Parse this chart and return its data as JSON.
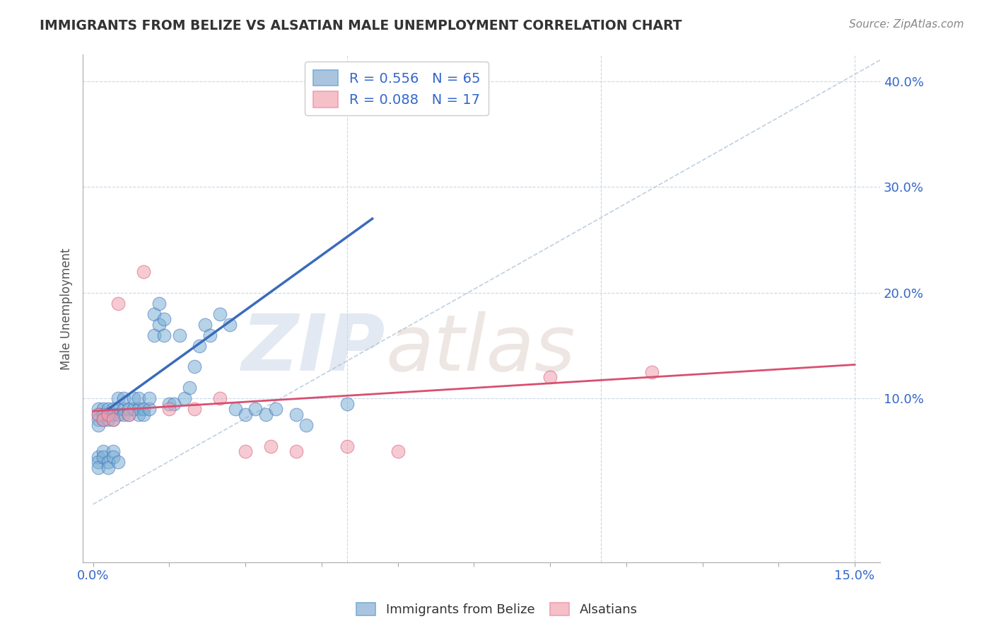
{
  "title": "IMMIGRANTS FROM BELIZE VS ALSATIAN MALE UNEMPLOYMENT CORRELATION CHART",
  "source": "Source: ZipAtlas.com",
  "ylabel": "Male Unemployment",
  "watermark_zip": "ZIP",
  "watermark_atlas": "atlas",
  "blue_label": "Immigrants from Belize",
  "pink_label": "Alsatians",
  "blue_R": 0.556,
  "blue_N": 65,
  "pink_R": 0.088,
  "pink_N": 17,
  "xlim": [
    -0.002,
    0.155
  ],
  "ylim": [
    -0.055,
    0.425
  ],
  "yticks_right": [
    0.1,
    0.2,
    0.3,
    0.4
  ],
  "ytick_labels_right": [
    "10.0%",
    "20.0%",
    "30.0%",
    "40.0%"
  ],
  "grid_color": "#c8d8e8",
  "blue_color": "#7bafd4",
  "pink_color": "#f0a0b0",
  "blue_line_color": "#3a6bbc",
  "pink_line_color": "#d85070",
  "diag_color": "#b0c4d8",
  "title_color": "#333333",
  "axis_label_color": "#555555",
  "right_tick_color": "#4488cc",
  "blue_scatter_x": [
    0.001,
    0.001,
    0.001,
    0.001,
    0.002,
    0.002,
    0.002,
    0.003,
    0.003,
    0.003,
    0.004,
    0.004,
    0.004,
    0.005,
    0.005,
    0.005,
    0.006,
    0.006,
    0.006,
    0.007,
    0.007,
    0.008,
    0.008,
    0.009,
    0.009,
    0.009,
    0.01,
    0.01,
    0.011,
    0.011,
    0.012,
    0.012,
    0.013,
    0.013,
    0.014,
    0.014,
    0.015,
    0.016,
    0.017,
    0.018,
    0.019,
    0.02,
    0.021,
    0.022,
    0.023,
    0.025,
    0.027,
    0.028,
    0.03,
    0.032,
    0.034,
    0.036,
    0.04,
    0.042,
    0.05,
    0.001,
    0.001,
    0.001,
    0.002,
    0.002,
    0.003,
    0.003,
    0.004,
    0.004,
    0.005
  ],
  "blue_scatter_y": [
    0.09,
    0.085,
    0.08,
    0.075,
    0.09,
    0.085,
    0.08,
    0.09,
    0.085,
    0.08,
    0.09,
    0.085,
    0.08,
    0.1,
    0.09,
    0.085,
    0.09,
    0.085,
    0.1,
    0.09,
    0.085,
    0.09,
    0.1,
    0.09,
    0.085,
    0.1,
    0.09,
    0.085,
    0.09,
    0.1,
    0.16,
    0.18,
    0.17,
    0.19,
    0.16,
    0.175,
    0.095,
    0.095,
    0.16,
    0.1,
    0.11,
    0.13,
    0.15,
    0.17,
    0.16,
    0.18,
    0.17,
    0.09,
    0.085,
    0.09,
    0.085,
    0.09,
    0.085,
    0.075,
    0.095,
    0.045,
    0.04,
    0.035,
    0.05,
    0.045,
    0.04,
    0.035,
    0.05,
    0.045,
    0.04
  ],
  "pink_scatter_x": [
    0.001,
    0.002,
    0.003,
    0.004,
    0.005,
    0.007,
    0.01,
    0.015,
    0.02,
    0.025,
    0.03,
    0.035,
    0.04,
    0.05,
    0.06,
    0.09,
    0.11
  ],
  "pink_scatter_y": [
    0.085,
    0.08,
    0.085,
    0.08,
    0.19,
    0.085,
    0.22,
    0.09,
    0.09,
    0.1,
    0.05,
    0.055,
    0.05,
    0.055,
    0.05,
    0.12,
    0.125
  ],
  "blue_line_x": [
    0.003,
    0.055
  ],
  "blue_line_y": [
    0.09,
    0.27
  ],
  "pink_line_x": [
    0.0,
    0.15
  ],
  "pink_line_y": [
    0.088,
    0.132
  ],
  "diag_line_x": [
    0.0,
    0.155
  ],
  "diag_line_y": [
    0.0,
    0.42
  ]
}
